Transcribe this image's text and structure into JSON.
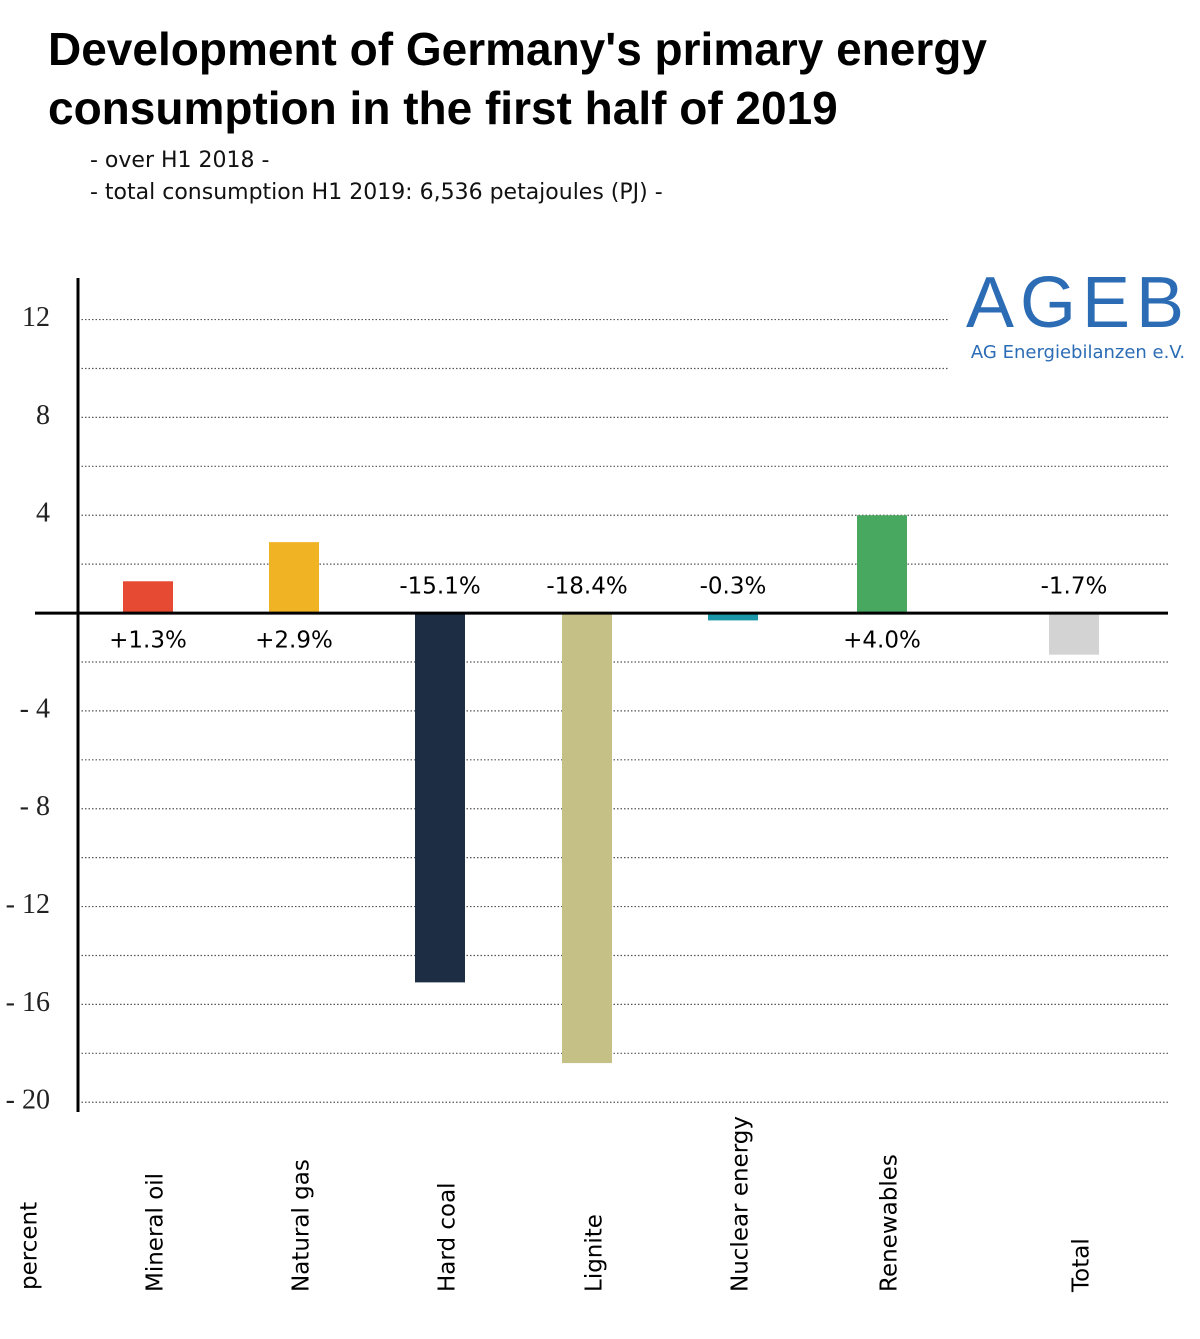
{
  "chart_data": {
    "type": "bar",
    "title": "Development of Germany's primary energy consumption in the first half of 2019",
    "subtitles": [
      "- over H1 2018 -",
      "- total consumption H1 2019: 6,536 petajoules (PJ) -"
    ],
    "y_label": "percent",
    "logo": {
      "name": "AGEB",
      "tagline": "AG Energiebilanzen e.V."
    },
    "categories": [
      "Mineral oil",
      "Natural gas",
      "Hard coal",
      "Lignite",
      "Nuclear energy",
      "Renewables",
      "Total"
    ],
    "values": [
      1.3,
      2.9,
      -15.1,
      -18.4,
      -0.3,
      4.0,
      -1.7
    ],
    "value_labels": [
      "+1.3%",
      "+2.9%",
      "-15.1%",
      "-18.4%",
      "-0.3%",
      "+4.0%",
      "-1.7%"
    ],
    "colors": [
      "#e64a33",
      "#f0b323",
      "#1d2e44",
      "#c5c186",
      "#1a96a8",
      "#48a860",
      "#d3d3d3"
    ],
    "ylim": [
      -20.4,
      13.7
    ],
    "yticks": [
      {
        "value": 12,
        "label": "12"
      },
      {
        "value": 8,
        "label": "8"
      },
      {
        "value": 4,
        "label": "4"
      },
      {
        "value": -4,
        "label": "- 4"
      },
      {
        "value": -8,
        "label": "- 8"
      },
      {
        "value": -12,
        "label": "- 12"
      },
      {
        "value": -16,
        "label": "- 16"
      },
      {
        "value": -20,
        "label": "- 20"
      }
    ],
    "minor_yticks": [
      10,
      6,
      2,
      -2,
      -6,
      -10,
      -14,
      -18
    ],
    "grid": true
  }
}
